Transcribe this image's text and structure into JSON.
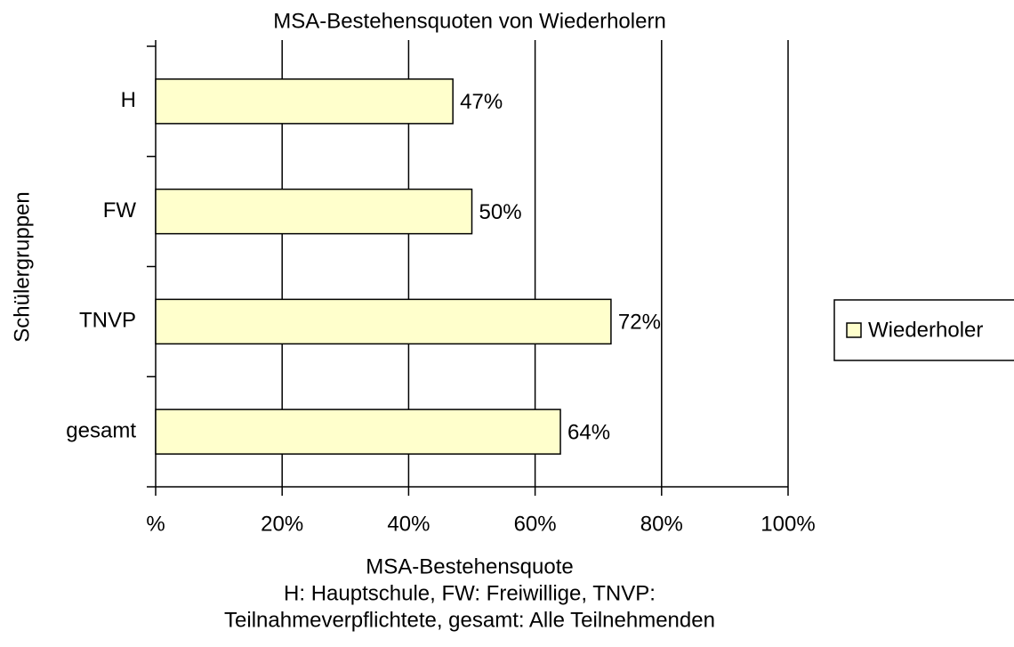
{
  "chart_data": {
    "type": "barh",
    "title": "MSA-Bestehensquoten von Wiederholern",
    "xlabel": "MSA-Bestehensquote",
    "note_lines": [
      "H: Hauptschule, FW: Freiwillige, TNVP:",
      "Teilnahmeverpflichtete, gesamt: Alle Teilnehmenden"
    ],
    "ylabel": "Schülergruppen",
    "categories": [
      "H",
      "FW",
      "TNVP",
      "gesamt"
    ],
    "series": [
      {
        "name": "Wiederholer",
        "color": "#ffffcc",
        "values": [
          47,
          50,
          72,
          64
        ],
        "value_labels": [
          "47%",
          "50%",
          "72%",
          "64%"
        ]
      }
    ],
    "xlim": [
      0,
      100
    ],
    "xticks": [
      {
        "value": 0,
        "label": "%"
      },
      {
        "value": 20,
        "label": "20%"
      },
      {
        "value": 40,
        "label": "40%"
      },
      {
        "value": 60,
        "label": "60%"
      },
      {
        "value": 80,
        "label": "80%"
      },
      {
        "value": 100,
        "label": "100%"
      }
    ],
    "grid": true,
    "legend": "right"
  }
}
